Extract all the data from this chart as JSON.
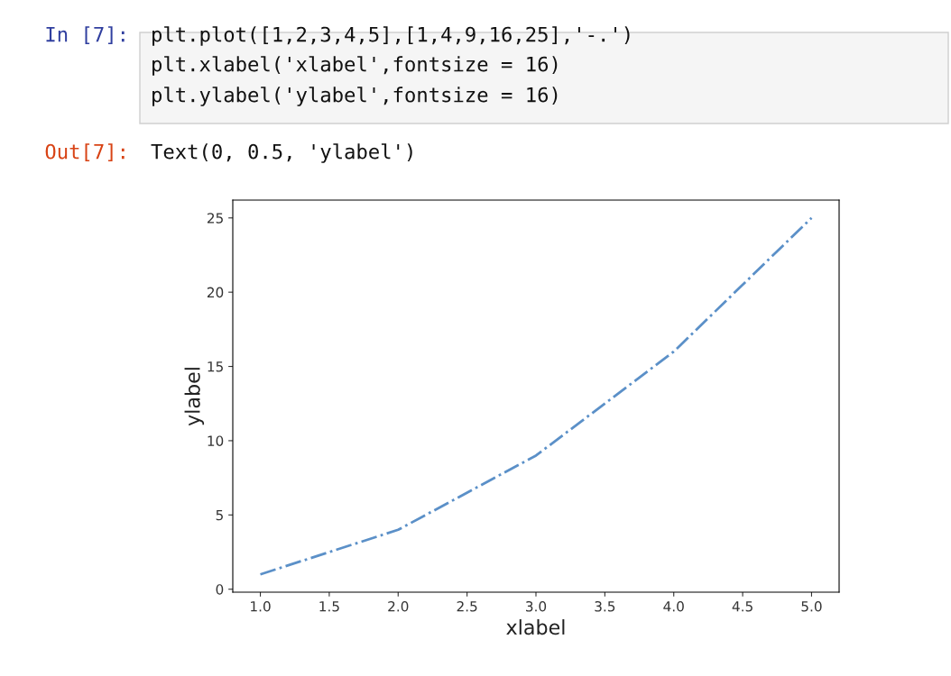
{
  "chart_data": {
    "type": "line",
    "xlabel": "xlabel",
    "ylabel": "ylabel",
    "x": [
      1,
      2,
      3,
      4,
      5
    ],
    "series": [
      {
        "color": "#5b90c8",
        "values": [
          1,
          4,
          9,
          16,
          25
        ]
      }
    ],
    "line_style": "dashdot",
    "grid": false,
    "legend": false,
    "xlim": [
      0.8,
      5.2
    ],
    "ylim": [
      -0.2,
      26.2
    ],
    "xticks": [
      {
        "value": 1,
        "label": "1.0"
      },
      {
        "value": 1.5,
        "label": "1.5"
      },
      {
        "value": 2,
        "label": "2.0"
      },
      {
        "value": 2.5,
        "label": "2.5"
      },
      {
        "value": 3,
        "label": "3.0"
      },
      {
        "value": 3.5,
        "label": "3.5"
      },
      {
        "value": 4,
        "label": "4.0"
      },
      {
        "value": 4.5,
        "label": "4.5"
      },
      {
        "value": 5,
        "label": "5.0"
      }
    ],
    "yticks": [
      0,
      5,
      10,
      15,
      20,
      25
    ],
    "annotations": [
      "In [7]:",
      "plt.plot([1,2,3,4,5],[1,4,9,16,25],'-.')",
      "plt.xlabel('xlabel',fontsize = 16)",
      "plt.ylabel('ylabel',fontsize = 16)",
      "Out[7]:",
      "Text(0, 0.5, 'ylabel')"
    ]
  }
}
